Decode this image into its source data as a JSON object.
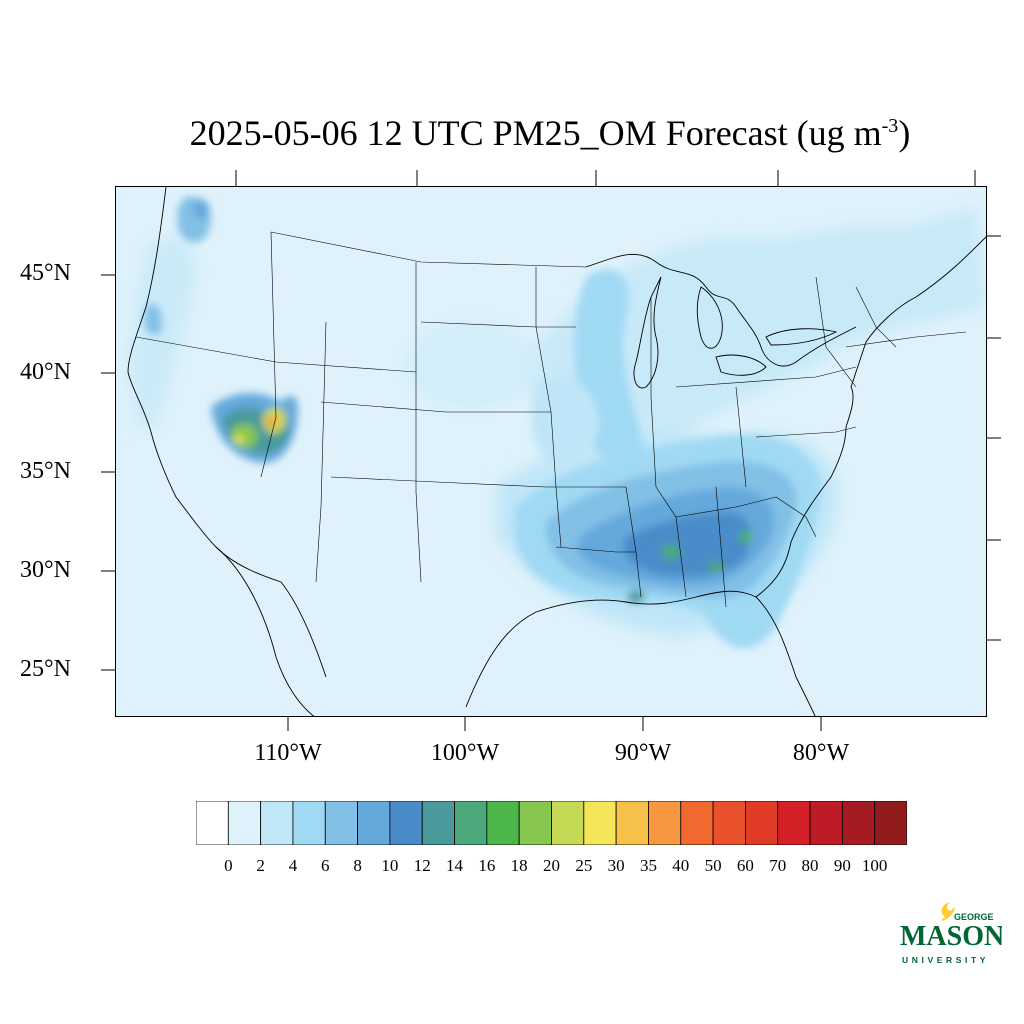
{
  "title": {
    "text": "2025-05-06 12 UTC PM25_OM Forecast (ug m",
    "superscript": "-3",
    "suffix": ")"
  },
  "map": {
    "projection": "lambert-conformal",
    "region": "CONUS",
    "variable": "PM25_OM",
    "lat_labels": [
      "45°N",
      "40°N",
      "35°N",
      "30°N",
      "25°N"
    ],
    "lon_labels": [
      "110°W",
      "100°W",
      "90°W",
      "80°W"
    ],
    "background_color": "#dff2fb",
    "hotspots": [
      {
        "region": "Utah / Nevada",
        "max_level": "40"
      },
      {
        "region": "Southeast US (Louisiana to South Carolina)",
        "max_level": "18"
      },
      {
        "region": "Pacific Northwest coast",
        "max_level": "6"
      }
    ]
  },
  "colorbar": {
    "labels": [
      "0",
      "2",
      "4",
      "6",
      "8",
      "10",
      "12",
      "14",
      "16",
      "18",
      "20",
      "25",
      "30",
      "35",
      "40",
      "50",
      "60",
      "70",
      "80",
      "90",
      "100"
    ],
    "colors": [
      "#ffffff",
      "#dff2fb",
      "#bfe7f8",
      "#a0d9f4",
      "#82c0e6",
      "#65a9dc",
      "#4a8cc9",
      "#4a9a9c",
      "#4aa87a",
      "#4cb64a",
      "#87c64f",
      "#c6d955",
      "#f5e659",
      "#f7c049",
      "#f7973f",
      "#f2692f",
      "#e8512b",
      "#e03b27",
      "#d62027",
      "#bd1b25",
      "#a51b21",
      "#921c1c"
    ]
  },
  "logo": {
    "line1": "GEORGE",
    "line2": "MASON",
    "line3": "UNIVERSITY",
    "brand_green": "#006633",
    "brand_gold": "#FFCC33"
  }
}
